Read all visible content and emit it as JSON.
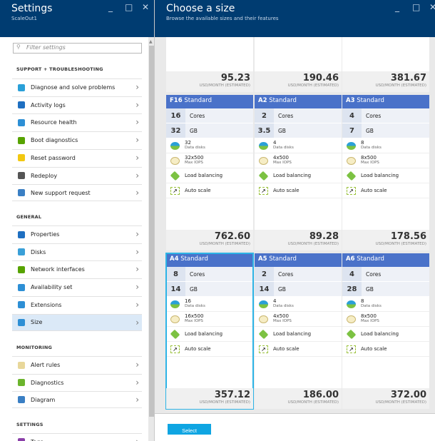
{
  "settings": {
    "title": "Settings",
    "subtitle": "ScaleOut1",
    "filter_placeholder": "Filter settings",
    "sections": [
      {
        "label": "SUPPORT + TROUBLESHOOTING",
        "items": [
          {
            "label": "Diagnose and solve problems",
            "icon": "wrench-icon",
            "color": "#2aa0d8"
          },
          {
            "label": "Activity logs",
            "icon": "log-icon",
            "color": "#1e6fc1"
          },
          {
            "label": "Resource health",
            "icon": "heart-icon",
            "color": "#2d8fd5"
          },
          {
            "label": "Boot diagnostics",
            "icon": "boot-icon",
            "color": "#57a300"
          },
          {
            "label": "Reset password",
            "icon": "key-icon",
            "color": "#f2c811"
          },
          {
            "label": "Redeploy",
            "icon": "hammer-icon",
            "color": "#555555"
          },
          {
            "label": "New support request",
            "icon": "person-icon",
            "color": "#3a7fc4"
          }
        ]
      },
      {
        "label": "GENERAL",
        "items": [
          {
            "label": "Properties",
            "icon": "properties-icon",
            "color": "#1e6fc1"
          },
          {
            "label": "Disks",
            "icon": "disk-icon",
            "color": "#3aa0d8"
          },
          {
            "label": "Network interfaces",
            "icon": "network-icon",
            "color": "#57a300"
          },
          {
            "label": "Availability set",
            "icon": "availability-icon",
            "color": "#2d8fd5"
          },
          {
            "label": "Extensions",
            "icon": "extensions-icon",
            "color": "#2d8fd5"
          },
          {
            "label": "Size",
            "icon": "size-icon",
            "color": "#2d8fd5"
          }
        ]
      },
      {
        "label": "MONITORING",
        "items": [
          {
            "label": "Alert rules",
            "icon": "gauge-icon",
            "color": "#e8d79a"
          },
          {
            "label": "Diagnostics",
            "icon": "diagnostics-icon",
            "color": "#6bb42c"
          },
          {
            "label": "Diagram",
            "icon": "diagram-icon",
            "color": "#3a7fc4"
          }
        ]
      },
      {
        "label": "SETTINGS",
        "items": [
          {
            "label": "Tags",
            "icon": "tag-icon",
            "color": "#8a3fa8"
          }
        ]
      }
    ],
    "selected": "Size"
  },
  "sizes": {
    "title": "Choose a size",
    "subtitle": "Browse the available sizes and their features",
    "select_label": "Select",
    "price_unit": "USD/MONTH (ESTIMATED)",
    "tier": "Standard",
    "cores_label": "Cores",
    "gb_label": "GB",
    "disks_label": "Data disks",
    "iops_label": "Max IOPS",
    "lb_label": "Load balancing",
    "autoscale_label": "Auto scale",
    "top_prices": [
      "95.23",
      "190.46",
      "381.67"
    ],
    "cards": [
      {
        "name": "F16",
        "cores": "16",
        "gb": "32",
        "disks": "32",
        "iops": "32x500",
        "price": "762.60"
      },
      {
        "name": "A2",
        "cores": "2",
        "gb": "3.5",
        "disks": "4",
        "iops": "4x500",
        "price": "89.28"
      },
      {
        "name": "A3",
        "cores": "4",
        "gb": "7",
        "disks": "8",
        "iops": "8x500",
        "price": "178.56"
      },
      {
        "name": "A4",
        "cores": "8",
        "gb": "14",
        "disks": "16",
        "iops": "16x500",
        "price": "357.12",
        "selected": true
      },
      {
        "name": "A5",
        "cores": "2",
        "gb": "14",
        "disks": "4",
        "iops": "4x500",
        "price": "186.00"
      },
      {
        "name": "A6",
        "cores": "4",
        "gb": "28",
        "disks": "8",
        "iops": "8x500",
        "price": "372.00"
      }
    ]
  }
}
